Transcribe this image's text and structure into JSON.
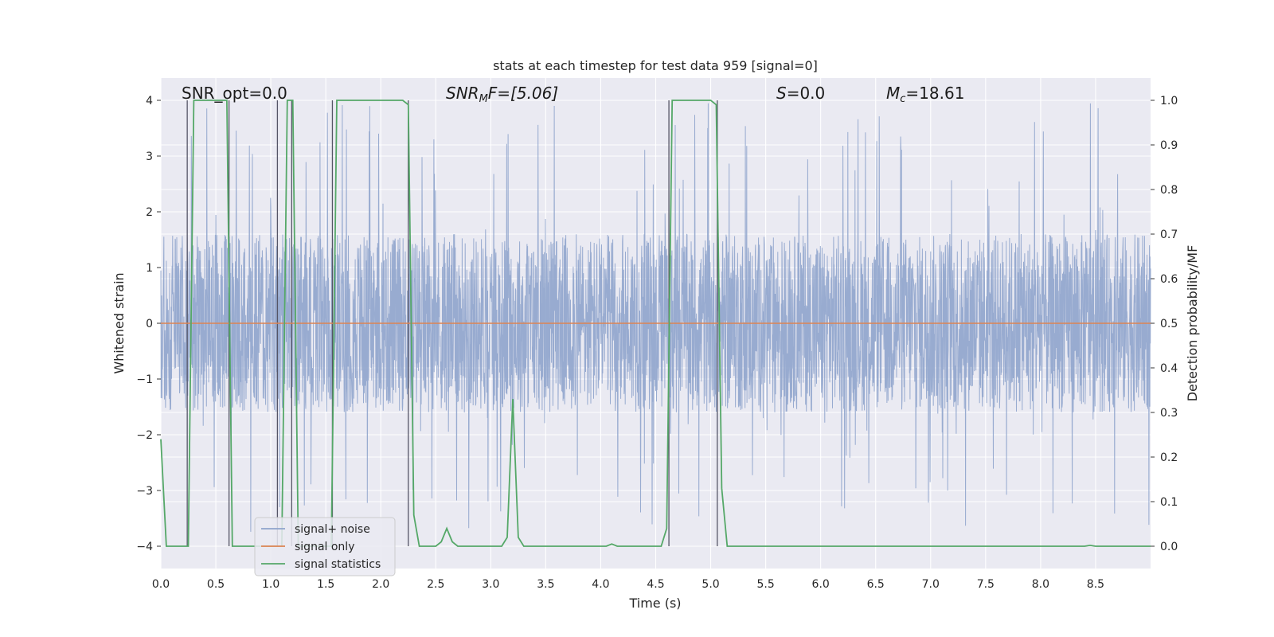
{
  "chart_data": {
    "type": "line",
    "title": "stats at each timestep for test data 959 [signal=0]",
    "xlabel": "Time (s)",
    "ylabel_left": "Whitened strain",
    "ylabel_right": "Detection probability/MF",
    "xlim": [
      0.0,
      9.0
    ],
    "ylim_left": [
      -4.4,
      4.4
    ],
    "ylim_right": [
      -0.05,
      1.05
    ],
    "x_ticks": [
      "0.0",
      "0.5",
      "1.0",
      "1.5",
      "2.0",
      "2.5",
      "3.0",
      "3.5",
      "4.0",
      "4.5",
      "5.0",
      "5.5",
      "6.0",
      "6.5",
      "7.0",
      "7.5",
      "8.0",
      "8.5"
    ],
    "y_ticks_left": [
      "−4",
      "−3",
      "−2",
      "−1",
      "0",
      "1",
      "2",
      "3",
      "4"
    ],
    "y_ticks_right": [
      "0.0",
      "0.1",
      "0.2",
      "0.3",
      "0.4",
      "0.5",
      "0.6",
      "0.7",
      "0.8",
      "0.9",
      "1.0"
    ],
    "grid": true,
    "legend_position": "lower-left",
    "annotations": {
      "snr_opt": "SNR_opt=0.0",
      "snr_mf_main": "SNR",
      "snr_mf_sub": "M",
      "snr_mf_rest": "F=[5.06]",
      "s_main": "S",
      "s_rest": "=0.0",
      "mc_main": "M",
      "mc_sub": "c",
      "mc_rest": "=18.61"
    },
    "series": [
      {
        "name": "signal+ noise",
        "color": "#8fa4cc",
        "axis": "left",
        "kind": "noise",
        "core_range": [
          -1.6,
          1.6
        ],
        "spike_range": [
          -3.8,
          3.95
        ]
      },
      {
        "name": "signal only",
        "color": "#dd8452",
        "axis": "left",
        "x": [
          0.0,
          9.0
        ],
        "y": [
          0.0,
          0.0
        ]
      },
      {
        "name": "signal statistics",
        "color": "#55a868",
        "axis": "right",
        "x": [
          0.0,
          0.05,
          0.1,
          0.15,
          0.2,
          0.25,
          0.3,
          0.35,
          0.4,
          0.45,
          0.5,
          0.55,
          0.6,
          0.65,
          0.7,
          0.75,
          0.8,
          0.85,
          0.9,
          0.95,
          1.0,
          1.05,
          1.1,
          1.15,
          1.2,
          1.25,
          1.3,
          1.35,
          1.4,
          1.45,
          1.5,
          1.55,
          1.6,
          1.65,
          1.7,
          1.75,
          1.8,
          1.85,
          1.9,
          1.95,
          2.0,
          2.05,
          2.1,
          2.15,
          2.2,
          2.25,
          2.3,
          2.35,
          2.4,
          2.45,
          2.5,
          2.55,
          2.6,
          2.65,
          2.7,
          2.75,
          2.8,
          2.85,
          2.9,
          2.95,
          3.0,
          3.05,
          3.1,
          3.15,
          3.2,
          3.25,
          3.3,
          3.35,
          3.4,
          3.45,
          3.5,
          3.55,
          3.6,
          3.65,
          3.7,
          3.75,
          3.8,
          3.85,
          3.9,
          3.95,
          4.0,
          4.05,
          4.1,
          4.15,
          4.2,
          4.25,
          4.3,
          4.35,
          4.4,
          4.45,
          4.5,
          4.55,
          4.6,
          4.65,
          4.7,
          4.75,
          4.8,
          4.85,
          4.9,
          4.95,
          5.0,
          5.05,
          5.1,
          5.15,
          5.2,
          5.25,
          5.3,
          5.35,
          5.4,
          5.45,
          5.5,
          6.0,
          6.5,
          7.0,
          7.5,
          8.0,
          8.4,
          8.45,
          8.5,
          9.0
        ],
        "y": [
          0.24,
          0.0,
          0.0,
          0.0,
          0.0,
          0.0,
          1.0,
          1.0,
          1.0,
          1.0,
          1.0,
          1.0,
          1.0,
          0.0,
          0.0,
          0.0,
          0.0,
          0.0,
          0.0,
          0.0,
          0.0,
          0.0,
          0.0,
          1.0,
          1.0,
          0.0,
          0.0,
          0.0,
          0.0,
          0.0,
          0.0,
          0.0,
          1.0,
          1.0,
          1.0,
          1.0,
          1.0,
          1.0,
          1.0,
          1.0,
          1.0,
          1.0,
          1.0,
          1.0,
          1.0,
          0.99,
          0.07,
          0.0,
          0.0,
          0.0,
          0.0,
          0.01,
          0.04,
          0.01,
          0.0,
          0.0,
          0.0,
          0.0,
          0.0,
          0.0,
          0.0,
          0.0,
          0.0,
          0.02,
          0.33,
          0.02,
          0.0,
          0.0,
          0.0,
          0.0,
          0.0,
          0.0,
          0.0,
          0.0,
          0.0,
          0.0,
          0.0,
          0.0,
          0.0,
          0.0,
          0.0,
          0.0,
          0.005,
          0.0,
          0.0,
          0.0,
          0.0,
          0.0,
          0.0,
          0.0,
          0.0,
          0.0,
          0.04,
          1.0,
          1.0,
          1.0,
          1.0,
          1.0,
          1.0,
          1.0,
          1.0,
          0.99,
          0.13,
          0.0,
          0.0,
          0.0,
          0.0,
          0.0,
          0.0,
          0.0,
          0.0,
          0.0,
          0.0,
          0.0,
          0.0,
          0.0,
          0.0,
          0.002,
          0.0,
          0.0
        ]
      }
    ],
    "detection_boundaries_x": [
      0.24,
      0.62,
      1.06,
      1.19,
      1.56,
      2.25,
      4.62,
      5.06
    ]
  }
}
